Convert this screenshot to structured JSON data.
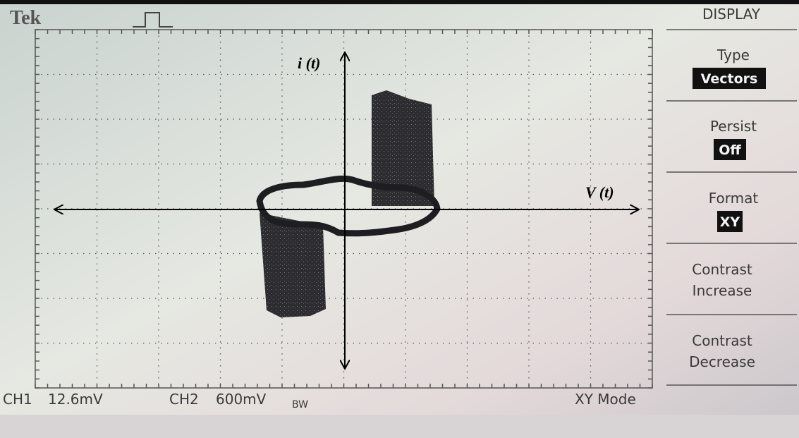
{
  "header": {
    "brand": "Tek",
    "menu_title": "DISPLAY"
  },
  "menu": [
    {
      "label": "Type",
      "value": "Vectors"
    },
    {
      "label": "Persist",
      "value": "Off"
    },
    {
      "label": "Format",
      "value": "XY"
    },
    {
      "label": "Contrast",
      "label2": "Increase"
    },
    {
      "label": "Contrast",
      "label2": "Decrease"
    }
  ],
  "status": {
    "ch1": "CH1",
    "ch1_scale": "12.6mV",
    "ch2": "CH2",
    "ch2_scale": "600mV",
    "bw": "BW",
    "mode": "XY Mode"
  },
  "annotations": {
    "y_axis": "i (t)",
    "x_axis": "V (t)"
  }
}
